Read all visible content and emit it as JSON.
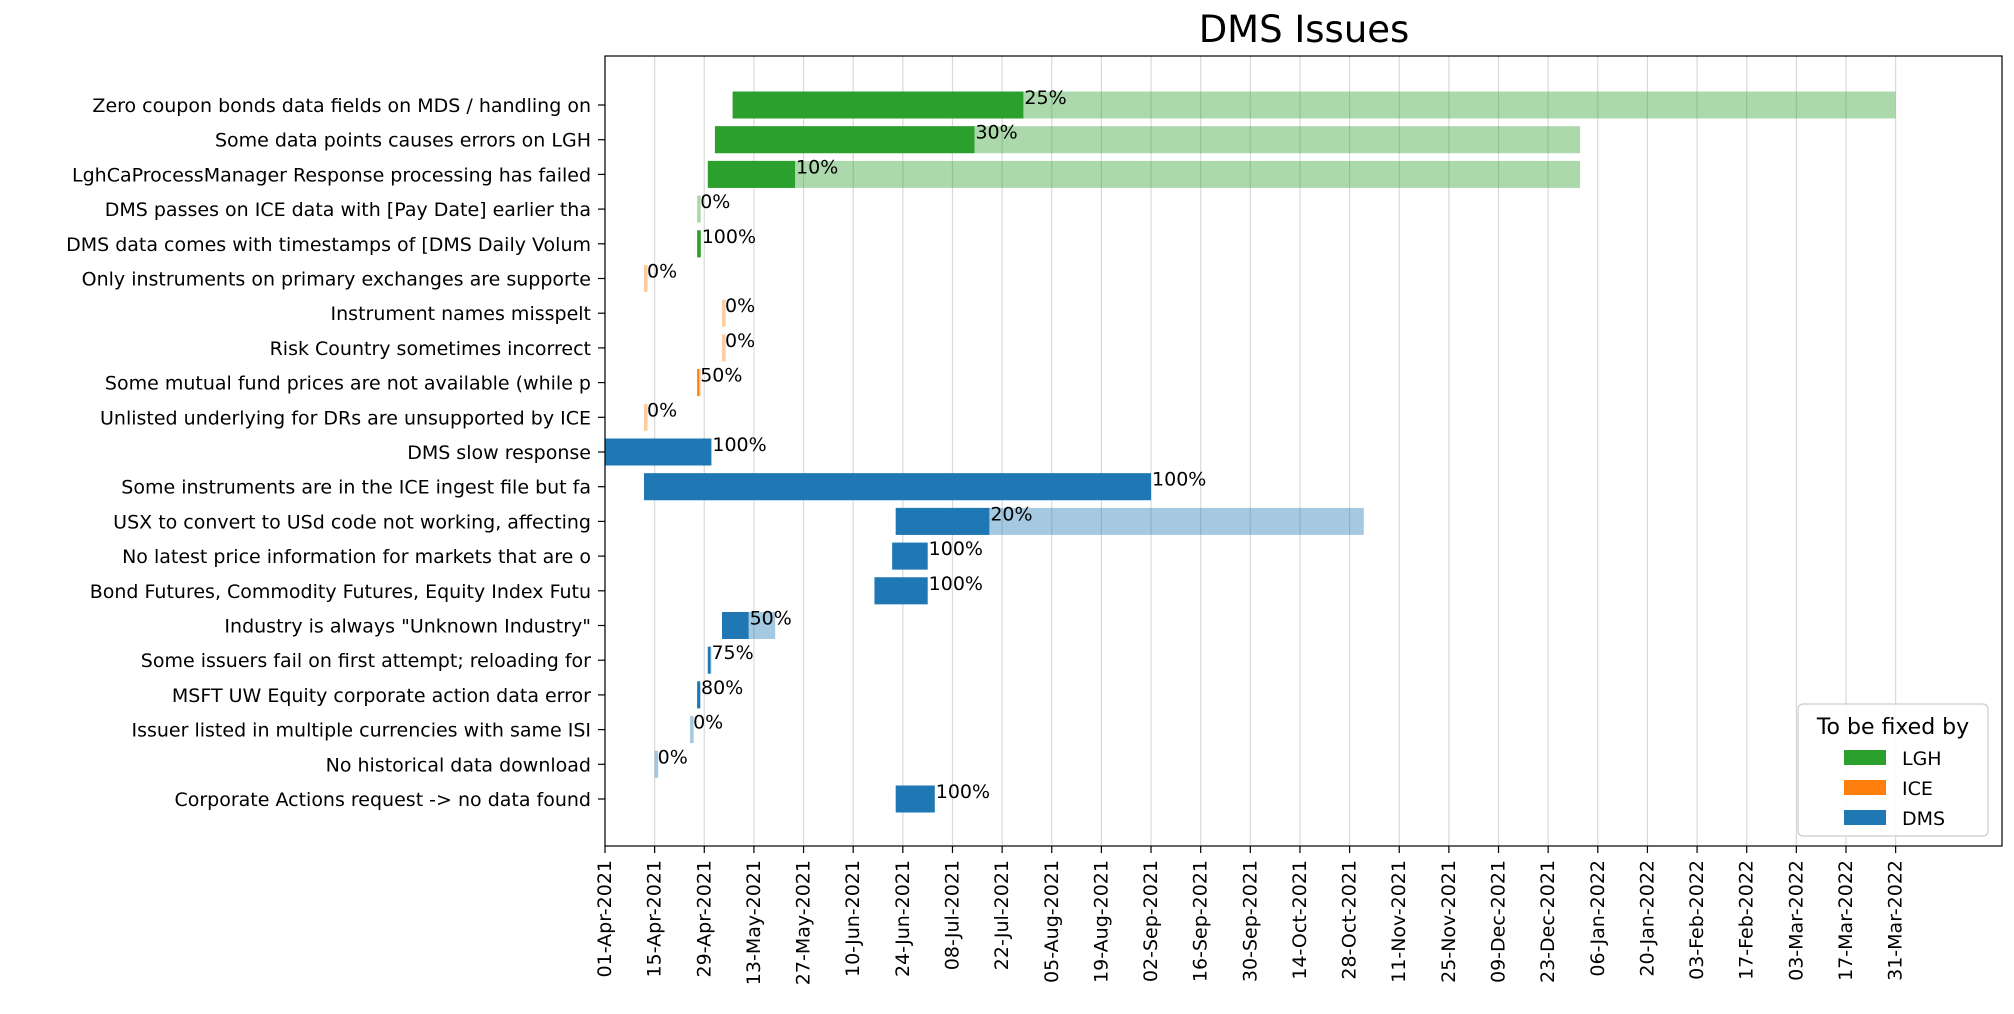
{
  "chart_data": {
    "type": "gantt",
    "title": "DMS Issues",
    "xlim": [
      "2021-04-01",
      "2022-04-30"
    ],
    "x_ticks": [
      "01-Apr-2021",
      "15-Apr-2021",
      "29-Apr-2021",
      "13-May-2021",
      "27-May-2021",
      "10-Jun-2021",
      "24-Jun-2021",
      "08-Jul-2021",
      "22-Jul-2021",
      "05-Aug-2021",
      "19-Aug-2021",
      "02-Sep-2021",
      "16-Sep-2021",
      "30-Sep-2021",
      "14-Oct-2021",
      "28-Oct-2021",
      "11-Nov-2021",
      "25-Nov-2021",
      "09-Dec-2021",
      "23-Dec-2021",
      "06-Jan-2022",
      "20-Jan-2022",
      "03-Feb-2022",
      "17-Feb-2022",
      "03-Mar-2022",
      "17-Mar-2022",
      "31-Mar-2022"
    ],
    "grid": "vertical",
    "legend": {
      "title": "To be fixed by",
      "position": "lower-right",
      "entries": [
        {
          "name": "LGH",
          "color": "#2ca02c"
        },
        {
          "name": "ICE",
          "color": "#ff7f0e"
        },
        {
          "name": "DMS",
          "color": "#1f77b4"
        }
      ]
    },
    "tasks": [
      {
        "label": "Zero coupon bonds data fields on MDS / handling on",
        "owner": "LGH",
        "start": "2021-05-07",
        "end": "2022-03-31",
        "completion": 25,
        "completion_label": "25%"
      },
      {
        "label": "Some data points causes errors on LGH",
        "owner": "LGH",
        "start": "2021-05-02",
        "end": "2022-01-01",
        "completion": 30,
        "completion_label": "30%"
      },
      {
        "label": "LghCaProcessManager Response processing has failed",
        "owner": "LGH",
        "start": "2021-04-30",
        "end": "2022-01-01",
        "completion": 10,
        "completion_label": "10%"
      },
      {
        "label": "DMS passes on ICE data with [Pay Date] earlier tha",
        "owner": "LGH",
        "start": "2021-04-27",
        "end": "2021-04-28",
        "completion": 0,
        "completion_label": "0%"
      },
      {
        "label": "DMS data comes with timestamps of [DMS Daily Volum",
        "owner": "LGH",
        "start": "2021-04-27",
        "end": "2021-04-28",
        "completion": 100,
        "completion_label": "100%"
      },
      {
        "label": "Only instruments on primary exchanges are supporte",
        "owner": "ICE",
        "start": "2021-04-12",
        "end": "2021-04-13",
        "completion": 0,
        "completion_label": "0%"
      },
      {
        "label": "Instrument names misspelt",
        "owner": "ICE",
        "start": "2021-05-04",
        "end": "2021-05-05",
        "completion": 0,
        "completion_label": "0%"
      },
      {
        "label": "Risk Country sometimes incorrect",
        "owner": "ICE",
        "start": "2021-05-04",
        "end": "2021-05-05",
        "completion": 0,
        "completion_label": "0%"
      },
      {
        "label": "Some mutual fund prices are not available (while p",
        "owner": "ICE",
        "start": "2021-04-27",
        "end": "2021-04-28",
        "completion": 50,
        "completion_label": "50%"
      },
      {
        "label": "Unlisted underlying for DRs are unsupported by ICE",
        "owner": "ICE",
        "start": "2021-04-12",
        "end": "2021-04-13",
        "completion": 0,
        "completion_label": "0%"
      },
      {
        "label": "DMS slow response",
        "owner": "DMS",
        "start": "2021-04-01",
        "end": "2021-05-01",
        "completion": 100,
        "completion_label": "100%"
      },
      {
        "label": "Some instruments are in the ICE ingest file but fa",
        "owner": "DMS",
        "start": "2021-04-12",
        "end": "2021-09-02",
        "completion": 100,
        "completion_label": "100%"
      },
      {
        "label": "USX to convert to USd code not working, affecting ",
        "owner": "DMS",
        "start": "2021-06-22",
        "end": "2021-11-01",
        "completion": 20,
        "completion_label": "20%"
      },
      {
        "label": "No latest price information for markets that are o",
        "owner": "DMS",
        "start": "2021-06-21",
        "end": "2021-07-01",
        "completion": 100,
        "completion_label": "100%"
      },
      {
        "label": "Bond Futures, Commodity Futures, Equity Index Futu",
        "owner": "DMS",
        "start": "2021-06-16",
        "end": "2021-07-01",
        "completion": 100,
        "completion_label": "100%"
      },
      {
        "label": "Industry is always \"Unknown Industry\"",
        "owner": "DMS",
        "start": "2021-05-04",
        "end": "2021-05-19",
        "completion": 50,
        "completion_label": "50%"
      },
      {
        "label": "Some issuers fail on first attempt; reloading for ",
        "owner": "DMS",
        "start": "2021-04-30",
        "end": "2021-05-01",
        "completion": 75,
        "completion_label": "75%"
      },
      {
        "label": "MSFT UW Equity corporate action data error",
        "owner": "DMS",
        "start": "2021-04-27",
        "end": "2021-04-28",
        "completion": 80,
        "completion_label": "80%"
      },
      {
        "label": "Issuer listed in multiple currencies with same ISI",
        "owner": "DMS",
        "start": "2021-04-25",
        "end": "2021-04-26",
        "completion": 0,
        "completion_label": "0%"
      },
      {
        "label": "No historical data download",
        "owner": "DMS",
        "start": "2021-04-15",
        "end": "2021-04-16",
        "completion": 0,
        "completion_label": "0%"
      },
      {
        "label": "Corporate Actions request -> no data found",
        "owner": "DMS",
        "start": "2021-06-22",
        "end": "2021-07-03",
        "completion": 100,
        "completion_label": "100%"
      }
    ]
  }
}
